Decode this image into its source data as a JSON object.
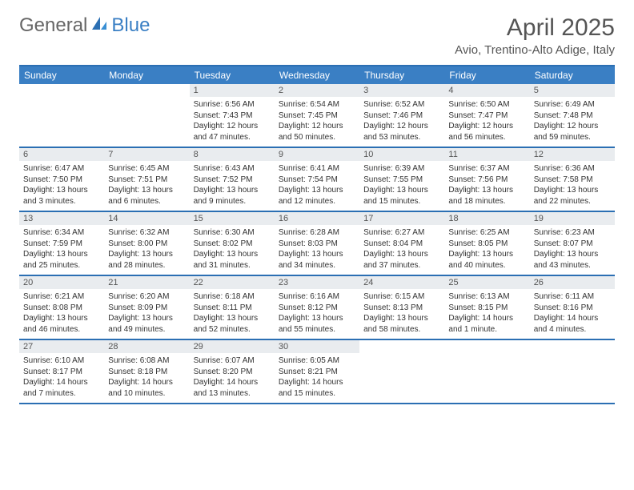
{
  "logo": {
    "text1": "General",
    "text2": "Blue"
  },
  "title": "April 2025",
  "location": "Avio, Trentino-Alto Adige, Italy",
  "colors": {
    "header_bg": "#3a7fc4",
    "border": "#2b6fb3",
    "daynum_bg": "#e9ecef",
    "text": "#555555",
    "body_text": "#333333"
  },
  "weekdays": [
    "Sunday",
    "Monday",
    "Tuesday",
    "Wednesday",
    "Thursday",
    "Friday",
    "Saturday"
  ],
  "weeks": [
    [
      {
        "n": "",
        "lines": []
      },
      {
        "n": "",
        "lines": []
      },
      {
        "n": "1",
        "lines": [
          "Sunrise: 6:56 AM",
          "Sunset: 7:43 PM",
          "Daylight: 12 hours and 47 minutes."
        ]
      },
      {
        "n": "2",
        "lines": [
          "Sunrise: 6:54 AM",
          "Sunset: 7:45 PM",
          "Daylight: 12 hours and 50 minutes."
        ]
      },
      {
        "n": "3",
        "lines": [
          "Sunrise: 6:52 AM",
          "Sunset: 7:46 PM",
          "Daylight: 12 hours and 53 minutes."
        ]
      },
      {
        "n": "4",
        "lines": [
          "Sunrise: 6:50 AM",
          "Sunset: 7:47 PM",
          "Daylight: 12 hours and 56 minutes."
        ]
      },
      {
        "n": "5",
        "lines": [
          "Sunrise: 6:49 AM",
          "Sunset: 7:48 PM",
          "Daylight: 12 hours and 59 minutes."
        ]
      }
    ],
    [
      {
        "n": "6",
        "lines": [
          "Sunrise: 6:47 AM",
          "Sunset: 7:50 PM",
          "Daylight: 13 hours and 3 minutes."
        ]
      },
      {
        "n": "7",
        "lines": [
          "Sunrise: 6:45 AM",
          "Sunset: 7:51 PM",
          "Daylight: 13 hours and 6 minutes."
        ]
      },
      {
        "n": "8",
        "lines": [
          "Sunrise: 6:43 AM",
          "Sunset: 7:52 PM",
          "Daylight: 13 hours and 9 minutes."
        ]
      },
      {
        "n": "9",
        "lines": [
          "Sunrise: 6:41 AM",
          "Sunset: 7:54 PM",
          "Daylight: 13 hours and 12 minutes."
        ]
      },
      {
        "n": "10",
        "lines": [
          "Sunrise: 6:39 AM",
          "Sunset: 7:55 PM",
          "Daylight: 13 hours and 15 minutes."
        ]
      },
      {
        "n": "11",
        "lines": [
          "Sunrise: 6:37 AM",
          "Sunset: 7:56 PM",
          "Daylight: 13 hours and 18 minutes."
        ]
      },
      {
        "n": "12",
        "lines": [
          "Sunrise: 6:36 AM",
          "Sunset: 7:58 PM",
          "Daylight: 13 hours and 22 minutes."
        ]
      }
    ],
    [
      {
        "n": "13",
        "lines": [
          "Sunrise: 6:34 AM",
          "Sunset: 7:59 PM",
          "Daylight: 13 hours and 25 minutes."
        ]
      },
      {
        "n": "14",
        "lines": [
          "Sunrise: 6:32 AM",
          "Sunset: 8:00 PM",
          "Daylight: 13 hours and 28 minutes."
        ]
      },
      {
        "n": "15",
        "lines": [
          "Sunrise: 6:30 AM",
          "Sunset: 8:02 PM",
          "Daylight: 13 hours and 31 minutes."
        ]
      },
      {
        "n": "16",
        "lines": [
          "Sunrise: 6:28 AM",
          "Sunset: 8:03 PM",
          "Daylight: 13 hours and 34 minutes."
        ]
      },
      {
        "n": "17",
        "lines": [
          "Sunrise: 6:27 AM",
          "Sunset: 8:04 PM",
          "Daylight: 13 hours and 37 minutes."
        ]
      },
      {
        "n": "18",
        "lines": [
          "Sunrise: 6:25 AM",
          "Sunset: 8:05 PM",
          "Daylight: 13 hours and 40 minutes."
        ]
      },
      {
        "n": "19",
        "lines": [
          "Sunrise: 6:23 AM",
          "Sunset: 8:07 PM",
          "Daylight: 13 hours and 43 minutes."
        ]
      }
    ],
    [
      {
        "n": "20",
        "lines": [
          "Sunrise: 6:21 AM",
          "Sunset: 8:08 PM",
          "Daylight: 13 hours and 46 minutes."
        ]
      },
      {
        "n": "21",
        "lines": [
          "Sunrise: 6:20 AM",
          "Sunset: 8:09 PM",
          "Daylight: 13 hours and 49 minutes."
        ]
      },
      {
        "n": "22",
        "lines": [
          "Sunrise: 6:18 AM",
          "Sunset: 8:11 PM",
          "Daylight: 13 hours and 52 minutes."
        ]
      },
      {
        "n": "23",
        "lines": [
          "Sunrise: 6:16 AM",
          "Sunset: 8:12 PM",
          "Daylight: 13 hours and 55 minutes."
        ]
      },
      {
        "n": "24",
        "lines": [
          "Sunrise: 6:15 AM",
          "Sunset: 8:13 PM",
          "Daylight: 13 hours and 58 minutes."
        ]
      },
      {
        "n": "25",
        "lines": [
          "Sunrise: 6:13 AM",
          "Sunset: 8:15 PM",
          "Daylight: 14 hours and 1 minute."
        ]
      },
      {
        "n": "26",
        "lines": [
          "Sunrise: 6:11 AM",
          "Sunset: 8:16 PM",
          "Daylight: 14 hours and 4 minutes."
        ]
      }
    ],
    [
      {
        "n": "27",
        "lines": [
          "Sunrise: 6:10 AM",
          "Sunset: 8:17 PM",
          "Daylight: 14 hours and 7 minutes."
        ]
      },
      {
        "n": "28",
        "lines": [
          "Sunrise: 6:08 AM",
          "Sunset: 8:18 PM",
          "Daylight: 14 hours and 10 minutes."
        ]
      },
      {
        "n": "29",
        "lines": [
          "Sunrise: 6:07 AM",
          "Sunset: 8:20 PM",
          "Daylight: 14 hours and 13 minutes."
        ]
      },
      {
        "n": "30",
        "lines": [
          "Sunrise: 6:05 AM",
          "Sunset: 8:21 PM",
          "Daylight: 14 hours and 15 minutes."
        ]
      },
      {
        "n": "",
        "lines": []
      },
      {
        "n": "",
        "lines": []
      },
      {
        "n": "",
        "lines": []
      }
    ]
  ]
}
